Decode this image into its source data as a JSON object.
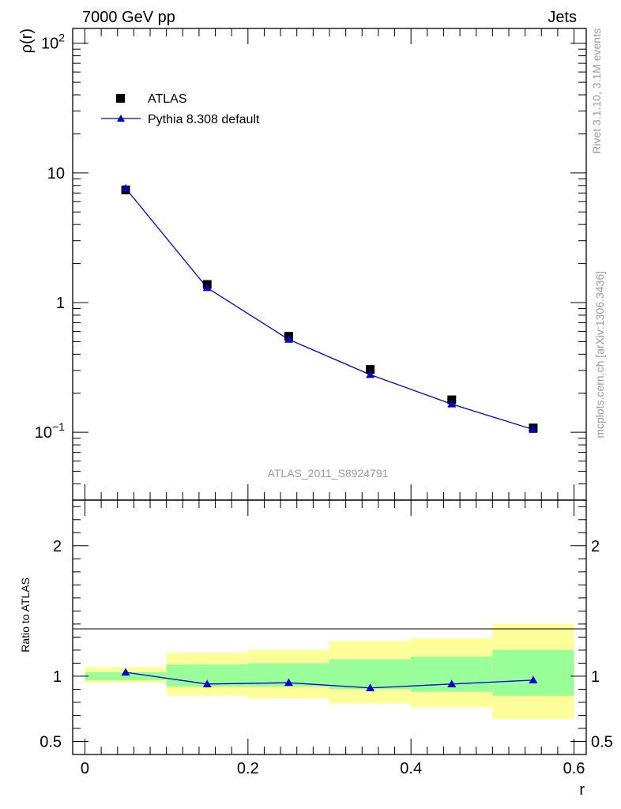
{
  "header": {
    "left": "7000 GeV pp",
    "right": "Jets"
  },
  "side_labels": {
    "rivet": "Rivet 3.1.10,  3.1M events",
    "mcplots": "mcplots.cern.ch [arXiv:1306.3436]"
  },
  "watermark": "ATLAS_2011_S8924791",
  "legend": {
    "placement": "top-left",
    "data_label": "ATLAS",
    "mc_label": "Pythia 8.308 default"
  },
  "colors": {
    "data": "#000000",
    "mc": "#0000cc",
    "band_inner": "#99ff99",
    "band_outer": "#ffff99",
    "watermark": "#999999"
  },
  "chart_data": [
    {
      "type": "scatter",
      "ylabel": "ρ(r)",
      "xlabel": "",
      "yscale": "log",
      "ylim": [
        0.03,
        130
      ],
      "xlim": [
        -0.015,
        0.615
      ],
      "ytick_labels": [
        "10^-1",
        "1",
        "10",
        "10^2"
      ],
      "series": [
        {
          "name": "ATLAS",
          "x": [
            0.05,
            0.15,
            0.25,
            0.35,
            0.45,
            0.55
          ],
          "y": [
            7.4,
            1.38,
            0.55,
            0.305,
            0.178,
            0.108
          ]
        },
        {
          "name": "Pythia 8.308 default",
          "x": [
            0.05,
            0.15,
            0.25,
            0.35,
            0.45,
            0.55
          ],
          "y": [
            7.6,
            1.3,
            0.52,
            0.278,
            0.165,
            0.105
          ]
        }
      ]
    },
    {
      "type": "line",
      "xlabel": "r",
      "ylabel": "Ratio to ATLAS",
      "ylim": [
        0.4,
        2.35
      ],
      "xlim": [
        -0.015,
        0.615
      ],
      "ytick_labels": [
        "0.5",
        "1",
        "2"
      ],
      "xtick_labels": [
        "0",
        "0.2",
        "0.4",
        "0.6"
      ],
      "bins": [
        [
          0.0,
          0.1
        ],
        [
          0.1,
          0.2
        ],
        [
          0.2,
          0.3
        ],
        [
          0.3,
          0.4
        ],
        [
          0.4,
          0.5
        ],
        [
          0.5,
          0.6
        ]
      ],
      "band_inner": [
        [
          0.97,
          1.03
        ],
        [
          0.92,
          1.09
        ],
        [
          0.92,
          1.1
        ],
        [
          0.9,
          1.13
        ],
        [
          0.88,
          1.15
        ],
        [
          0.85,
          1.2
        ]
      ],
      "band_outer": [
        [
          0.95,
          1.07
        ],
        [
          0.85,
          1.18
        ],
        [
          0.83,
          1.2
        ],
        [
          0.79,
          1.27
        ],
        [
          0.76,
          1.29
        ],
        [
          0.67,
          1.4
        ]
      ],
      "series": [
        {
          "name": "Pythia 8.308 default",
          "x": [
            0.05,
            0.15,
            0.25,
            0.35,
            0.45,
            0.55
          ],
          "y": [
            1.03,
            0.94,
            0.95,
            0.91,
            0.94,
            0.97
          ]
        }
      ],
      "reference_line": 1
    }
  ]
}
